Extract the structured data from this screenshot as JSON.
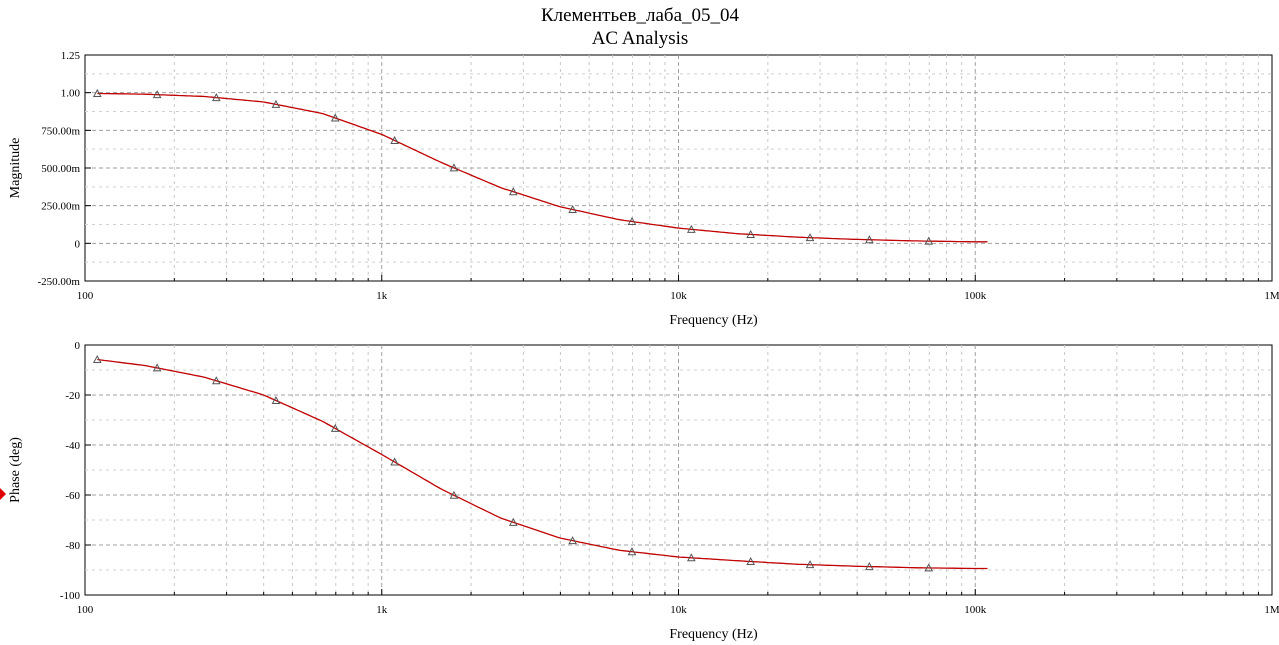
{
  "title": "Клементьев_лаба_05_04",
  "subtitle": "AC Analysis",
  "colors": {
    "trace": "#c00000",
    "marker": "#555555",
    "grid": "#a0a0a0",
    "cursor": "#e00000"
  },
  "chart_data": [
    {
      "type": "line",
      "xscale": "log",
      "xlim": [
        100,
        1000000
      ],
      "ylim": [
        -0.25,
        1.25
      ],
      "grid": true,
      "xlabel": "Frequency (Hz)",
      "ylabel": "Magnitude",
      "x_ticks": [
        100,
        1000,
        10000,
        100000,
        1000000
      ],
      "x_tick_labels": [
        "100",
        "1k",
        "10k",
        "100k",
        "1M"
      ],
      "y_ticks": [
        -0.25,
        0,
        0.25,
        0.5,
        0.75,
        1.0,
        1.25
      ],
      "y_tick_labels": [
        "-250.00m",
        "0",
        "250.00m",
        "500.00m",
        "750.00m",
        "1.00",
        "1.25"
      ],
      "series": [
        {
          "x": [
            100,
            159,
            251,
            398,
            631,
            1000,
            1585,
            2512,
            3981,
            6310,
            10000,
            15849,
            25119,
            39811,
            63096,
            100000
          ],
          "values": [
            0.996,
            0.99,
            0.975,
            0.939,
            0.862,
            0.723,
            0.537,
            0.37,
            0.243,
            0.157,
            0.101,
            0.064,
            0.041,
            0.026,
            0.016,
            0.01
          ]
        }
      ],
      "markers_x": [
        110,
        175,
        277,
        440,
        697,
        1105,
        1751,
        2775,
        4398,
        6970,
        11047,
        17508,
        27748,
        43977,
        69697
      ]
    },
    {
      "type": "line",
      "xscale": "log",
      "xlim": [
        100,
        1000000
      ],
      "ylim": [
        -100,
        0
      ],
      "grid": true,
      "xlabel": "Frequency (Hz)",
      "ylabel": "Phase (deg)",
      "x_ticks": [
        100,
        1000,
        10000,
        100000,
        1000000
      ],
      "x_tick_labels": [
        "100",
        "1k",
        "10k",
        "100k",
        "1M"
      ],
      "y_ticks": [
        -100,
        -80,
        -60,
        -40,
        -20,
        0
      ],
      "y_tick_labels": [
        "-100",
        "-80",
        "-60",
        "-40",
        "-20",
        "0"
      ],
      "series": [
        {
          "x": [
            100,
            159,
            251,
            398,
            631,
            1000,
            1585,
            2512,
            3981,
            6310,
            10000,
            15849,
            25119,
            39811,
            63096,
            100000
          ],
          "values": [
            -5.2,
            -8.2,
            -12.8,
            -19.9,
            -30.5,
            -43.8,
            -57.6,
            -69.2,
            -77.2,
            -82.1,
            -84.8,
            -86.3,
            -87.7,
            -88.5,
            -89.1,
            -89.4
          ]
        }
      ],
      "markers_x": [
        110,
        175,
        277,
        440,
        697,
        1105,
        1751,
        2775,
        4398,
        6970,
        11047,
        17508,
        27748,
        43977,
        69697
      ]
    }
  ]
}
